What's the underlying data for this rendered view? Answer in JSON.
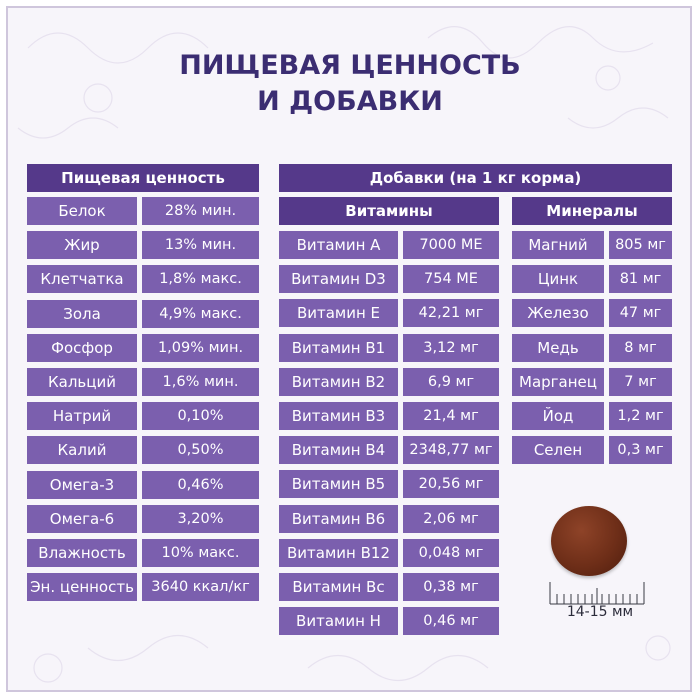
{
  "title": {
    "line1": "ПИЩЕВАЯ ЦЕННОСТЬ",
    "line2": "И ДОБАВКИ"
  },
  "nutrition": {
    "header": "Пищевая ценность",
    "rows": [
      {
        "name": "Белок",
        "value": "28% мин."
      },
      {
        "name": "Жир",
        "value": "13% мин."
      },
      {
        "name": "Клетчатка",
        "value": "1,8% макс."
      },
      {
        "name": "Зола",
        "value": "4,9% макс."
      },
      {
        "name": "Фосфор",
        "value": "1,09% мин."
      },
      {
        "name": "Кальций",
        "value": "1,6% мин."
      },
      {
        "name": "Натрий",
        "value": "0,10%"
      },
      {
        "name": "Калий",
        "value": "0,50%"
      },
      {
        "name": "Омега-3",
        "value": "0,46%"
      },
      {
        "name": "Омега-6",
        "value": "3,20%"
      },
      {
        "name": "Влажность",
        "value": "10% макс."
      },
      {
        "name": "Эн. ценность",
        "value": "3640 ккал/кг"
      }
    ]
  },
  "additives": {
    "header": "Добавки (на 1 кг корма)",
    "vitamins": {
      "header": "Витамины",
      "rows": [
        {
          "name": "Витамин A",
          "value": "7000 МЕ"
        },
        {
          "name": "Витамин D3",
          "value": "754 МЕ"
        },
        {
          "name": "Витамин E",
          "value": "42,21 мг"
        },
        {
          "name": "Витамин B1",
          "value": "3,12 мг"
        },
        {
          "name": "Витамин B2",
          "value": "6,9 мг"
        },
        {
          "name": "Витамин B3",
          "value": "21,4 мг"
        },
        {
          "name": "Витамин B4",
          "value": "2348,77 мг"
        },
        {
          "name": "Витамин B5",
          "value": "20,56 мг"
        },
        {
          "name": "Витамин B6",
          "value": "2,06 мг"
        },
        {
          "name": "Витамин B12",
          "value": "0,048 мг"
        },
        {
          "name": "Витамин Bc",
          "value": "0,38 мг"
        },
        {
          "name": "Витамин H",
          "value": "0,46 мг"
        }
      ]
    },
    "minerals": {
      "header": "Минералы",
      "rows": [
        {
          "name": "Магний",
          "value": "805 мг"
        },
        {
          "name": "Цинк",
          "value": "81 мг"
        },
        {
          "name": "Железо",
          "value": "47 мг"
        },
        {
          "name": "Медь",
          "value": "8 мг"
        },
        {
          "name": "Марганец",
          "value": "7 мг"
        },
        {
          "name": "Йод",
          "value": "1,2 мг"
        },
        {
          "name": "Селен",
          "value": "0,3 мг"
        }
      ]
    }
  },
  "kibble": {
    "size_label": "14-15 мм"
  },
  "colors": {
    "header": "#55398a",
    "cell": "#7b5fae",
    "title": "#3b2d72"
  }
}
